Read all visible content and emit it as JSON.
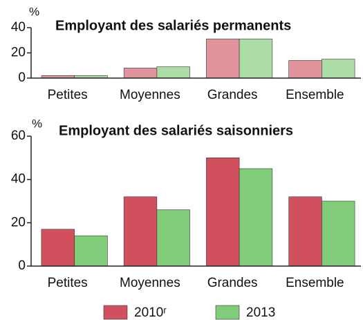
{
  "chart_data": [
    {
      "type": "bar",
      "title": "Employant des salariés permanents",
      "y_label": "%",
      "categories": [
        "Petites",
        "Moyennes",
        "Grandes",
        "Ensemble"
      ],
      "series": [
        {
          "name": "2010ʳ",
          "color": "#e0939a",
          "values": [
            2,
            8,
            31,
            14
          ]
        },
        {
          "name": "2013",
          "color": "#acdca6",
          "values": [
            2,
            9,
            31,
            15
          ]
        }
      ],
      "ylim": [
        0,
        40
      ],
      "yticks": [
        0,
        20,
        40
      ]
    },
    {
      "type": "bar",
      "title": "Employant des salariés saisonniers",
      "y_label": "%",
      "categories": [
        "Petites",
        "Moyennes",
        "Grandes",
        "Ensemble"
      ],
      "series": [
        {
          "name": "2010ʳ",
          "color": "#d0505e",
          "values": [
            17,
            32,
            50,
            32
          ]
        },
        {
          "name": "2013",
          "color": "#80cc79",
          "values": [
            14,
            26,
            45,
            30
          ]
        }
      ],
      "ylim": [
        0,
        60
      ],
      "yticks": [
        0,
        20,
        40,
        60
      ],
      "legend": "bottom"
    }
  ]
}
